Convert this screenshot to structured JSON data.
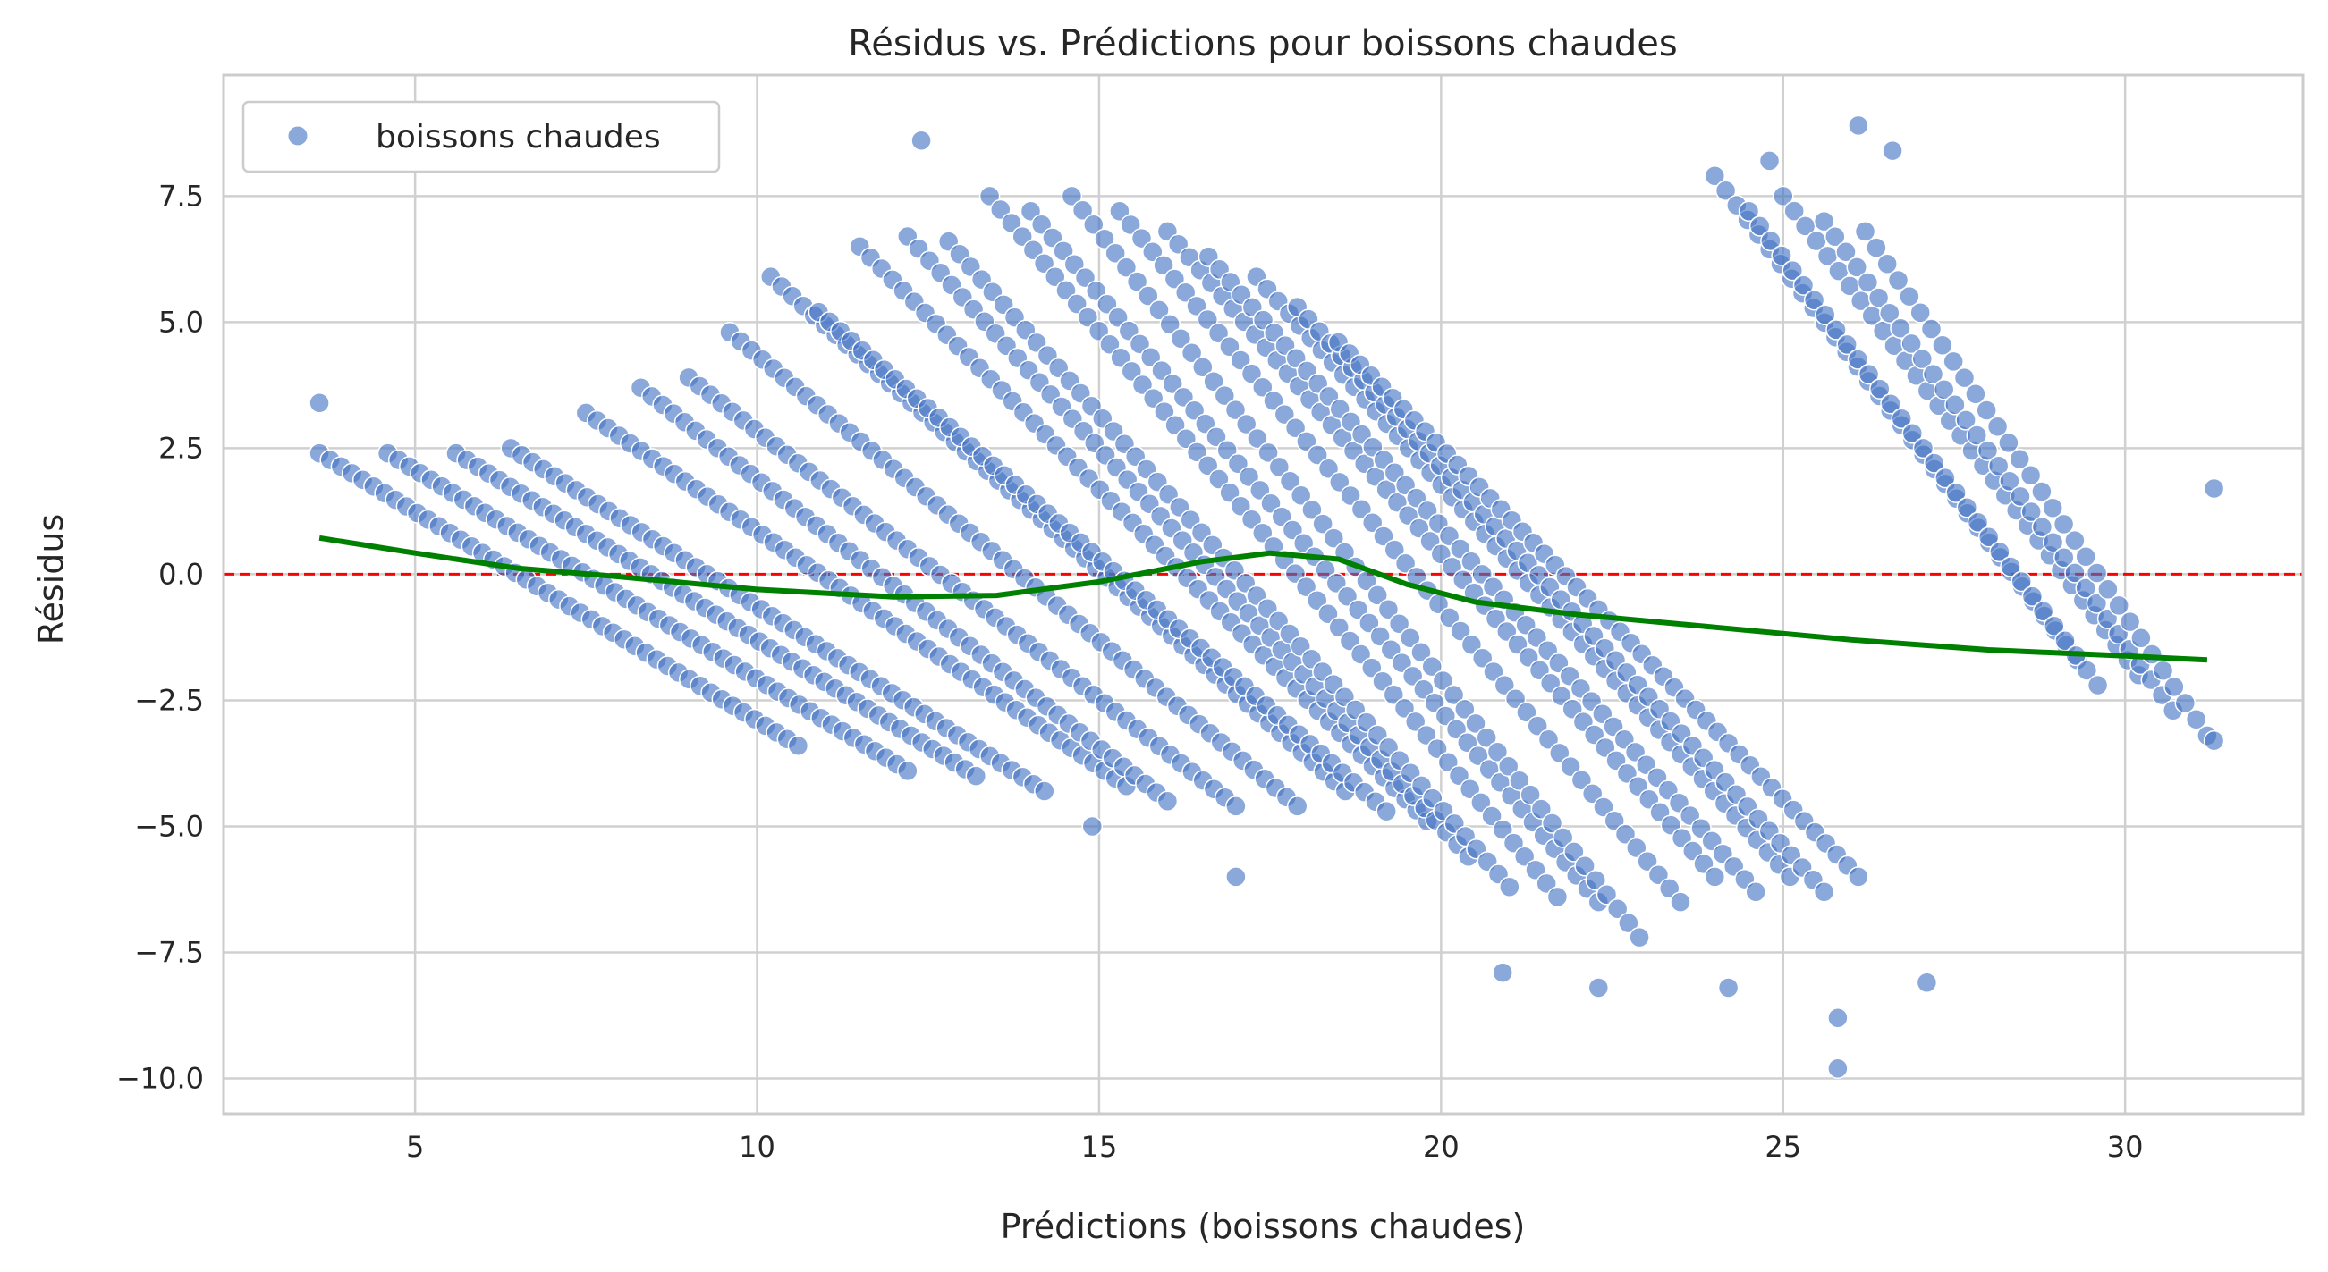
{
  "chart_data": {
    "type": "scatter",
    "title": "Résidus vs. Prédictions pour boissons chaudes",
    "xlabel": "Prédictions (boissons chaudes)",
    "ylabel": "Résidus",
    "xlim": [
      2.2,
      32.6
    ],
    "ylim": [
      -10.7,
      9.9
    ],
    "xticks": [
      5,
      10,
      15,
      20,
      25,
      30
    ],
    "xtick_labels": [
      "5",
      "10",
      "15",
      "20",
      "25",
      "30"
    ],
    "yticks": [
      7.5,
      5.0,
      2.5,
      0.0,
      -2.5,
      -5.0,
      -7.5,
      -10.0
    ],
    "ytick_labels": [
      "7.5",
      "5.0",
      "2.5",
      "0.0",
      "−2.5",
      "−5.0",
      "−7.5",
      "−10.0"
    ],
    "grid": true,
    "legend": {
      "position": "top-left",
      "entries": [
        "boissons chaudes"
      ]
    },
    "colors": {
      "points": "#4472c4",
      "trend": "#008000",
      "zero_line": "#ff0000",
      "grid": "#d0d0d0",
      "axes": "#cccccc"
    },
    "reference_line": {
      "y": 0,
      "style": "dashed"
    },
    "series": [
      {
        "name": "boissons chaudes",
        "kind": "scatter",
        "bands": [
          {
            "x": [
              3.6,
              10.6
            ],
            "y": [
              2.4,
              -3.4
            ]
          },
          {
            "x": [
              4.6,
              12.2
            ],
            "y": [
              2.4,
              -3.9
            ]
          },
          {
            "x": [
              5.6,
              13.2
            ],
            "y": [
              2.4,
              -4.0
            ]
          },
          {
            "x": [
              6.4,
              14.2
            ],
            "y": [
              2.5,
              -4.3
            ]
          },
          {
            "x": [
              7.5,
              15.4
            ],
            "y": [
              3.2,
              -4.2
            ]
          },
          {
            "x": [
              8.3,
              16.0
            ],
            "y": [
              3.7,
              -4.5
            ]
          },
          {
            "x": [
              9.0,
              17.0
            ],
            "y": [
              3.9,
              -4.6
            ]
          },
          {
            "x": [
              9.6,
              17.9
            ],
            "y": [
              4.8,
              -4.6
            ]
          },
          {
            "x": [
              10.2,
              18.6
            ],
            "y": [
              5.9,
              -4.3
            ]
          },
          {
            "x": [
              10.9,
              19.2
            ],
            "y": [
              5.2,
              -4.7
            ]
          },
          {
            "x": [
              11.5,
              19.8
            ],
            "y": [
              6.5,
              -4.9
            ]
          },
          {
            "x": [
              12.2,
              20.4
            ],
            "y": [
              6.7,
              -5.6
            ]
          },
          {
            "x": [
              12.8,
              21.0
            ],
            "y": [
              6.6,
              -6.2
            ]
          },
          {
            "x": [
              13.4,
              21.7
            ],
            "y": [
              7.5,
              -6.4
            ]
          },
          {
            "x": [
              14.0,
              22.3
            ],
            "y": [
              7.2,
              -6.5
            ]
          },
          {
            "x": [
              14.6,
              22.9
            ],
            "y": [
              7.5,
              -7.2
            ]
          },
          {
            "x": [
              15.3,
              23.5
            ],
            "y": [
              7.2,
              -6.5
            ]
          },
          {
            "x": [
              16.0,
              24.0
            ],
            "y": [
              6.8,
              -6.0
            ]
          },
          {
            "x": [
              16.6,
              24.6
            ],
            "y": [
              6.3,
              -6.3
            ]
          },
          {
            "x": [
              17.3,
              25.1
            ],
            "y": [
              5.9,
              -6.0
            ]
          },
          {
            "x": [
              17.9,
              25.6
            ],
            "y": [
              5.3,
              -6.3
            ]
          },
          {
            "x": [
              18.5,
              26.1
            ],
            "y": [
              4.6,
              -6.0
            ]
          },
          {
            "x": [
              24.0,
              29.3
            ],
            "y": [
              7.9,
              -1.7
            ]
          },
          {
            "x": [
              24.5,
              29.6
            ],
            "y": [
              7.2,
              -2.2
            ]
          },
          {
            "x": [
              25.0,
              30.2
            ],
            "y": [
              7.5,
              -2.0
            ]
          },
          {
            "x": [
              25.6,
              30.7
            ],
            "y": [
              7.0,
              -2.7
            ]
          },
          {
            "x": [
              26.2,
              31.2
            ],
            "y": [
              6.8,
              -3.2
            ]
          }
        ],
        "sample_points": [
          {
            "x": 12.4,
            "y": 8.6
          },
          {
            "x": 26.1,
            "y": 8.9
          },
          {
            "x": 26.6,
            "y": 8.4
          },
          {
            "x": 24.8,
            "y": 8.2
          },
          {
            "x": 25.8,
            "y": -9.8
          },
          {
            "x": 25.8,
            "y": -8.8
          },
          {
            "x": 24.2,
            "y": -8.2
          },
          {
            "x": 22.3,
            "y": -8.2
          },
          {
            "x": 27.1,
            "y": -8.1
          },
          {
            "x": 20.9,
            "y": -7.9
          },
          {
            "x": 31.3,
            "y": 1.7
          },
          {
            "x": 31.3,
            "y": -3.3
          },
          {
            "x": 3.6,
            "y": 3.4
          },
          {
            "x": 14.9,
            "y": -5.0
          },
          {
            "x": 17.0,
            "y": -6.0
          }
        ]
      },
      {
        "name": "",
        "kind": "trend",
        "x": [
          3.6,
          5,
          6.5,
          8,
          10,
          12,
          13.5,
          15,
          16.5,
          17.5,
          18.5,
          19.5,
          20.5,
          22,
          24,
          26,
          28,
          30,
          31.2
        ],
        "y": [
          0.72,
          0.42,
          0.12,
          -0.05,
          -0.3,
          -0.45,
          -0.42,
          -0.15,
          0.25,
          0.42,
          0.3,
          -0.2,
          -0.55,
          -0.8,
          -1.05,
          -1.3,
          -1.5,
          -1.62,
          -1.7
        ]
      }
    ]
  }
}
